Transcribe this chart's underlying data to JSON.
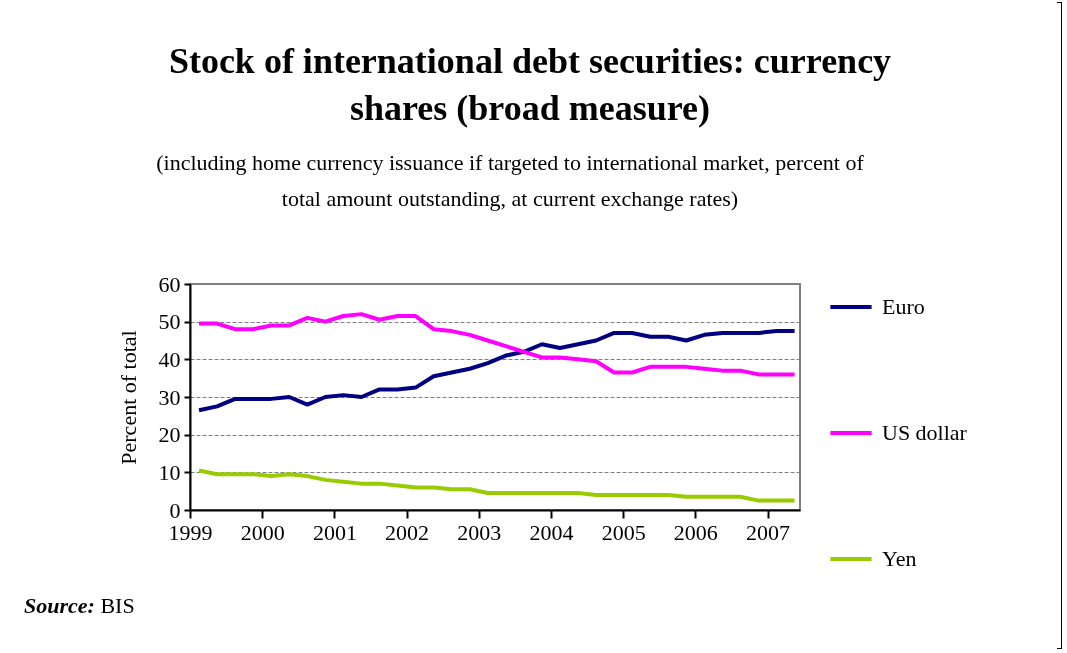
{
  "chart_data": {
    "type": "line",
    "title": "Stock of international debt securities: currency shares (broad measure)",
    "subtitle": "(including home currency issuance if targeted to international market, percent of total amount outstanding, at current exchange rates)",
    "ylabel": "Percent of total",
    "annotations": [
      "Source: BIS"
    ],
    "x": [
      1999.125,
      1999.375,
      1999.625,
      1999.875,
      2000.125,
      2000.375,
      2000.625,
      2000.875,
      2001.125,
      2001.375,
      2001.625,
      2001.875,
      2002.125,
      2002.375,
      2002.625,
      2002.875,
      2003.125,
      2003.375,
      2003.625,
      2003.875,
      2004.125,
      2004.375,
      2004.625,
      2004.875,
      2005.125,
      2005.375,
      2005.625,
      2005.875,
      2006.125,
      2006.375,
      2006.625,
      2006.875,
      2007.125,
      2007.375
    ],
    "series": [
      {
        "name": "Euro",
        "color": "#000080",
        "values": [
          26.5,
          27.5,
          29.5,
          29.5,
          29.5,
          30,
          28,
          30,
          30.5,
          30,
          32,
          32,
          32.5,
          35.5,
          36.5,
          37.5,
          39,
          41,
          42,
          44,
          43,
          44,
          45,
          47,
          47,
          46,
          46,
          45,
          46.5,
          47,
          47,
          47,
          47.5,
          47.5
        ]
      },
      {
        "name": "US dollar",
        "color": "#ff00ff",
        "values": [
          49.5,
          49.5,
          48,
          48,
          49,
          49,
          51,
          50,
          51.5,
          52,
          50.5,
          51.5,
          51.5,
          48,
          47.5,
          46.5,
          45,
          43.5,
          42,
          40.5,
          40.5,
          40,
          39.5,
          36.5,
          36.5,
          38,
          38,
          38,
          37.5,
          37,
          37,
          36,
          36,
          36
        ]
      },
      {
        "name": "Yen",
        "color": "#99cc00",
        "values": [
          10.5,
          9.5,
          9.5,
          9.5,
          9,
          9.5,
          9,
          8,
          7.5,
          7,
          7,
          6.5,
          6,
          6,
          5.5,
          5.5,
          4.5,
          4.5,
          4.5,
          4.5,
          4.5,
          4.5,
          4,
          4,
          4,
          4,
          4,
          3.5,
          3.5,
          3.5,
          3.5,
          2.5,
          2.5,
          2.5
        ]
      }
    ],
    "xlim": [
      1999,
      2007.45
    ],
    "xticks": [
      1999,
      2000,
      2001,
      2002,
      2003,
      2004,
      2005,
      2006,
      2007
    ],
    "ylim": [
      0,
      60
    ],
    "yticks": [
      0,
      10,
      20,
      30,
      40,
      50,
      60
    ],
    "grid": "y",
    "legend": "right"
  }
}
